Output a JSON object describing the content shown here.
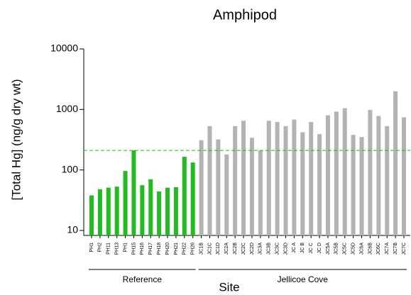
{
  "chart_data": {
    "type": "bar",
    "title": "Amphipod",
    "x_label": "Site",
    "y_label": "[Total Hg] (ng/g dry wt)",
    "log_scale": true,
    "ylim": [
      10,
      10000
    ],
    "yticks": [
      10,
      100,
      1000,
      10000
    ],
    "reference_line": {
      "value": 210,
      "color": "#22bb22"
    },
    "groups": [
      {
        "name": "Reference",
        "color": "#22bb22",
        "categories": [
          "PH1",
          "PH2",
          "PH11",
          "PH13",
          "PH1",
          "PH15",
          "PH16",
          "PH17",
          "PH18",
          "PH20",
          "PH21",
          "PH22",
          "PH26"
        ],
        "values": [
          38,
          48,
          51,
          53,
          96,
          211,
          56,
          70,
          44,
          51,
          52,
          165,
          133
        ]
      },
      {
        "name": "Jellicoe Cove",
        "color": "#b3b3b3",
        "categories": [
          "JC1B",
          "JC1C",
          "JC1D",
          "JC2A",
          "JC2B",
          "JC2C",
          "JC2D",
          "JC3A",
          "JC3B",
          "JC3C",
          "JC3D",
          "JC A",
          "JC B",
          "JC C",
          "JC D",
          "JC5A",
          "JC5B",
          "JC5C",
          "JC5D",
          "JC6A",
          "JC6B",
          "JC6C",
          "JC7A",
          "JC7B",
          "JC7C"
        ],
        "values": [
          310,
          530,
          320,
          180,
          530,
          650,
          340,
          210,
          650,
          620,
          530,
          680,
          420,
          620,
          390,
          800,
          920,
          1050,
          380,
          350,
          980,
          780,
          530,
          2000,
          740
        ]
      }
    ]
  }
}
